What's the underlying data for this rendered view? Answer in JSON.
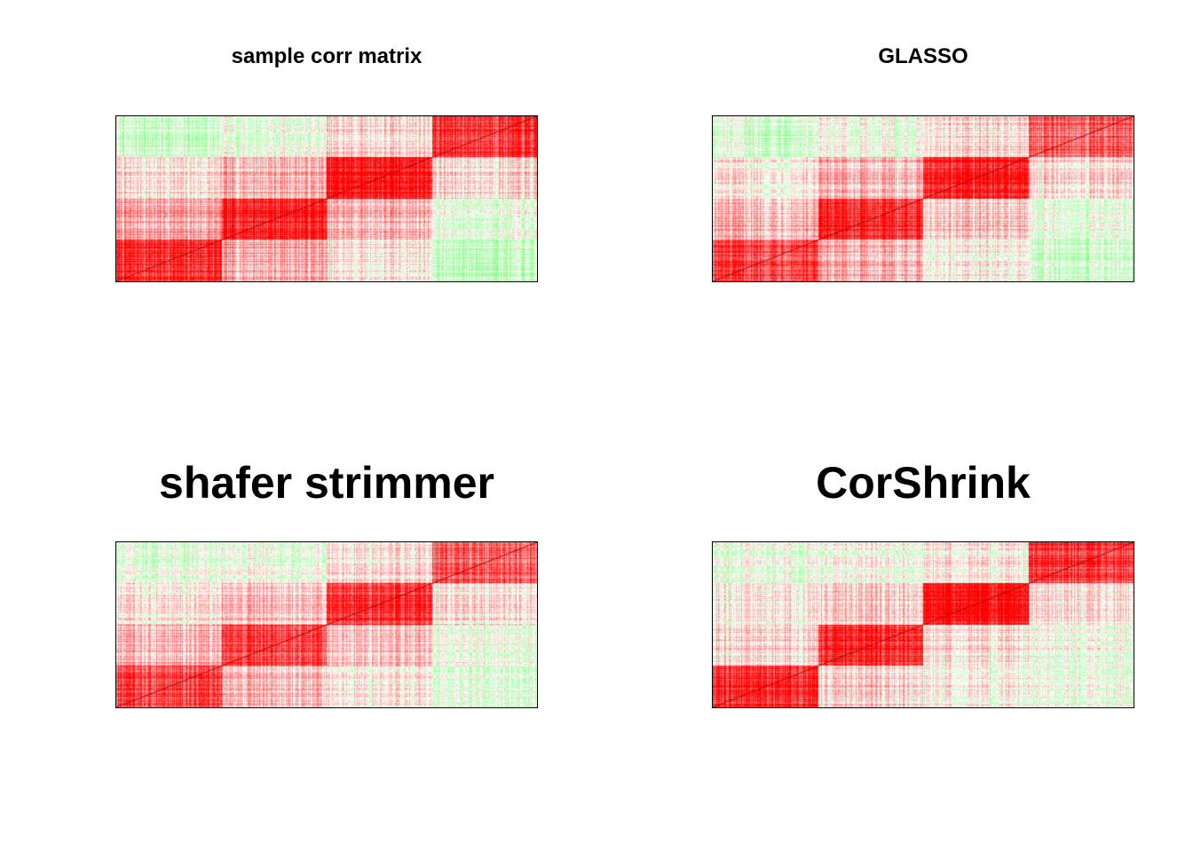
{
  "chart_data": [
    {
      "type": "heatmap",
      "title": "sample corr matrix",
      "blocks": 4,
      "diagonal": true,
      "block_means": [
        [
          0.85,
          0.35,
          0.1,
          -0.25
        ],
        [
          0.35,
          0.9,
          0.3,
          -0.1
        ],
        [
          0.1,
          0.3,
          0.95,
          0.15
        ],
        [
          -0.25,
          -0.1,
          0.15,
          0.8
        ]
      ],
      "colors": {
        "positive": "#ff0000",
        "zero": "#ffffff",
        "negative": "#33ff33"
      }
    },
    {
      "type": "heatmap",
      "title": "GLASSO",
      "blocks": 4,
      "diagonal": true,
      "block_means": [
        [
          0.75,
          0.3,
          0.05,
          -0.2
        ],
        [
          0.3,
          0.85,
          0.25,
          -0.08
        ],
        [
          0.05,
          0.25,
          0.9,
          0.12
        ],
        [
          -0.2,
          -0.08,
          0.12,
          0.6
        ]
      ],
      "colors": {
        "positive": "#ff0000",
        "zero": "#ffffff",
        "negative": "#33ff33"
      }
    },
    {
      "type": "heatmap",
      "title": "shafer strimmer",
      "blocks": 4,
      "diagonal": true,
      "block_means": [
        [
          0.7,
          0.28,
          0.05,
          -0.15
        ],
        [
          0.28,
          0.78,
          0.25,
          -0.06
        ],
        [
          0.05,
          0.25,
          0.8,
          0.1
        ],
        [
          -0.15,
          -0.06,
          0.1,
          0.62
        ]
      ],
      "colors": {
        "positive": "#ff0000",
        "zero": "#ffffff",
        "negative": "#33ff33"
      }
    },
    {
      "type": "heatmap",
      "title": "CorShrink",
      "blocks": 4,
      "diagonal": true,
      "block_means": [
        [
          0.85,
          0.18,
          0.02,
          -0.1
        ],
        [
          0.18,
          0.9,
          0.15,
          -0.03
        ],
        [
          0.02,
          0.15,
          0.93,
          0.05
        ],
        [
          -0.1,
          -0.03,
          0.05,
          0.75
        ]
      ],
      "colors": {
        "positive": "#ff0000",
        "zero": "#ffffff",
        "negative": "#33ff33"
      }
    }
  ]
}
